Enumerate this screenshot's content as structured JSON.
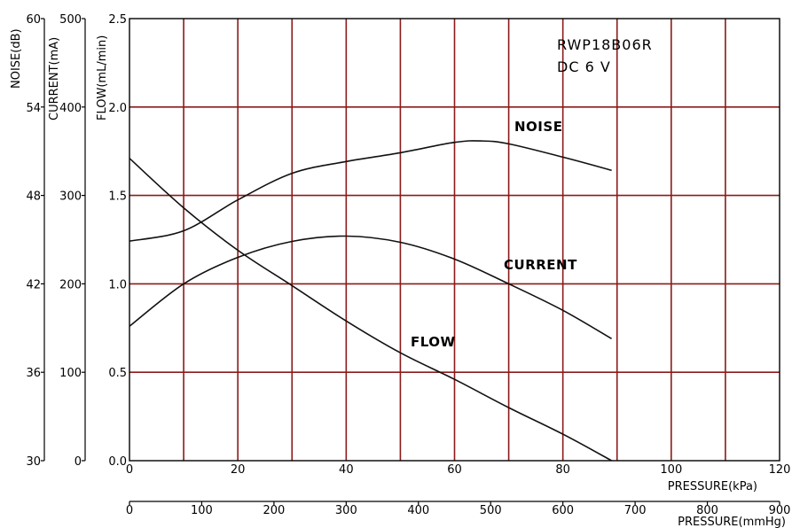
{
  "chart_data": {
    "type": "line",
    "model": "RWP18B06R",
    "voltage": "DC 6 V",
    "x_primary": {
      "label": "PRESSURE(kPa)",
      "ticks": [
        "0",
        "20",
        "40",
        "60",
        "80",
        "100",
        "120"
      ],
      "range": [
        0,
        120
      ],
      "grid_step": 10
    },
    "x_secondary": {
      "label": "PRESSURE(mmHg)",
      "ticks": [
        "0",
        "100",
        "200",
        "300",
        "400",
        "500",
        "600",
        "700",
        "800",
        "900"
      ],
      "range": [
        0,
        900
      ]
    },
    "y_flow": {
      "label": "FLOW(mL/min)",
      "ticks": [
        "0.0",
        "0.5",
        "1.0",
        "1.5",
        "2.0",
        "2.5"
      ],
      "range": [
        0,
        2.5
      ]
    },
    "y_current": {
      "label": "CURRENT(mA)",
      "ticks": [
        "0",
        "100",
        "200",
        "300",
        "400",
        "500"
      ],
      "range": [
        0,
        500
      ]
    },
    "y_noise": {
      "label": "NOISE(dB)",
      "ticks": [
        "30",
        "36",
        "42",
        "48",
        "54",
        "60"
      ],
      "range": [
        30,
        60
      ]
    },
    "grid": true,
    "series": [
      {
        "name": "FLOW",
        "unit": "mL/min",
        "x": [
          0,
          10,
          20,
          30,
          40,
          50,
          60,
          70,
          80,
          89
        ],
        "y": [
          1.71,
          1.43,
          1.19,
          0.99,
          0.79,
          0.61,
          0.46,
          0.3,
          0.15,
          0.0
        ]
      },
      {
        "name": "CURRENT",
        "unit": "mA",
        "x": [
          0,
          10,
          20,
          30,
          40,
          50,
          60,
          70,
          80,
          89
        ],
        "y": [
          152,
          200,
          230,
          248,
          254,
          247,
          228,
          200,
          170,
          138
        ]
      },
      {
        "name": "NOISE",
        "unit": "dB",
        "x": [
          0,
          10,
          20,
          30,
          40,
          50,
          60,
          65,
          70,
          80,
          89
        ],
        "y": [
          44.9,
          45.6,
          47.7,
          49.5,
          50.3,
          50.9,
          51.6,
          51.7,
          51.5,
          50.6,
          49.7
        ]
      }
    ]
  }
}
